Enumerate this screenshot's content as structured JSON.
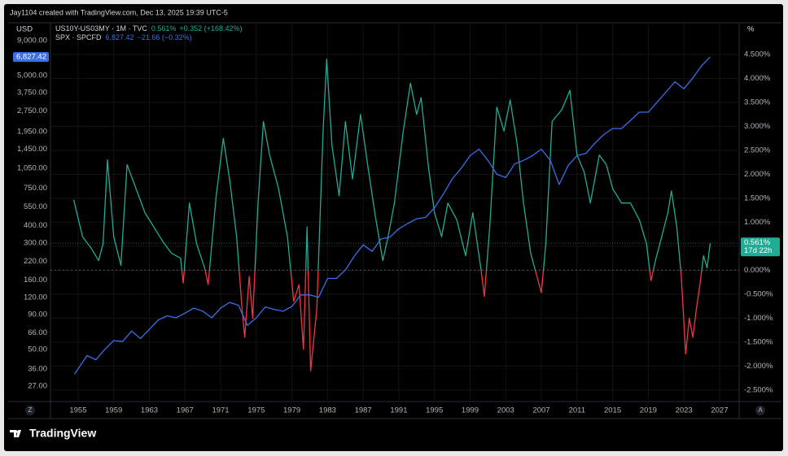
{
  "header": "Jay1104 created with TradingView.com, Dec 13, 2025 19:39 UTC-5",
  "footer": "TradingView",
  "buttons": [
    "Z",
    "A"
  ],
  "chart_data": {
    "type": "line",
    "left_axis_label": "USD",
    "right_axis_label": "%",
    "countdown": "17d 22h",
    "xlim": [
      1951.9,
      2029.2
    ],
    "xticks": [
      1955,
      1959,
      1963,
      1967,
      1971,
      1975,
      1979,
      1983,
      1987,
      1991,
      1995,
      1999,
      2003,
      2007,
      2011,
      2015,
      2019,
      2023,
      2027
    ],
    "ylim": [
      20.8,
      12140
    ],
    "log_y": true,
    "yticks": [
      {
        "value": 9000,
        "label": "9,000.00"
      },
      {
        "value": 5000,
        "label": "5,000.00"
      },
      {
        "value": 3750,
        "label": "3,750.00"
      },
      {
        "value": 2750,
        "label": "2,750.00"
      },
      {
        "value": 1950,
        "label": "1,950.00"
      },
      {
        "value": 1450,
        "label": "1,450.00"
      },
      {
        "value": 1050,
        "label": "1,050.00"
      },
      {
        "value": 750,
        "label": "750.00"
      },
      {
        "value": 550,
        "label": "550.00"
      },
      {
        "value": 400,
        "label": "400.00"
      },
      {
        "value": 300,
        "label": "300.00"
      },
      {
        "value": 220,
        "label": "220.00"
      },
      {
        "value": 160,
        "label": "160.00"
      },
      {
        "value": 120,
        "label": "120.00"
      },
      {
        "value": 90,
        "label": "90.00"
      },
      {
        "value": 66,
        "label": "66.00"
      },
      {
        "value": 50,
        "label": "50.00"
      },
      {
        "value": 36,
        "label": "36.00"
      },
      {
        "value": 27,
        "label": "27.00"
      }
    ],
    "y2lim": [
      -2.74,
      5.16
    ],
    "y2ticks": [
      {
        "value": 4.5,
        "label": "4.500%"
      },
      {
        "value": 4,
        "label": "4.000%"
      },
      {
        "value": 3.5,
        "label": "3.500%"
      },
      {
        "value": 3,
        "label": "3.000%"
      },
      {
        "value": 2.5,
        "label": "2.500%"
      },
      {
        "value": 2,
        "label": "2.000%"
      },
      {
        "value": 1.5,
        "label": "1.500%"
      },
      {
        "value": 1,
        "label": "1.000%"
      },
      {
        "value": 0.5,
        "label": "0.500%"
      },
      {
        "value": 0,
        "label": "0.000%"
      },
      {
        "value": -0.5,
        "label": "-0.500%"
      },
      {
        "value": -1,
        "label": "-1.000%"
      },
      {
        "value": -1.5,
        "label": "-1.500%"
      },
      {
        "value": -2,
        "label": "-2.000%"
      },
      {
        "value": -2.5,
        "label": "-2.500%"
      }
    ],
    "grid": true,
    "series": [
      {
        "name": "US10Y-US03MY · 1M · TVC",
        "axis": "y2",
        "color": "#22ab94",
        "negative_color": "#f23645",
        "last_label": "0.561%",
        "change_label": "+0.352 (+168.42%)",
        "x": [
          1954.5,
          1955.5,
          1956.5,
          1957.3,
          1957.8,
          1958.3,
          1959,
          1959.8,
          1960.5,
          1961.5,
          1962.5,
          1963.5,
          1964.5,
          1965.5,
          1966.5,
          1966.8,
          1967.5,
          1968.3,
          1969.2,
          1969.6,
          1970.5,
          1971.3,
          1972,
          1972.8,
          1973.4,
          1973.7,
          1974.2,
          1974.6,
          1975.2,
          1975.8,
          1976.5,
          1977.5,
          1978.5,
          1979.2,
          1979.8,
          1980.3,
          1980.7,
          1981.1,
          1981.8,
          1982.5,
          1982.9,
          1983.5,
          1984.3,
          1985,
          1985.8,
          1986.7,
          1987.5,
          1988.3,
          1989.2,
          1989.8,
          1990.5,
          1991.5,
          1992.3,
          1993,
          1993.5,
          1994.3,
          1995,
          1995.8,
          1996.5,
          1997.5,
          1998.5,
          1999.3,
          2000.2,
          2000.6,
          2001.2,
          2002,
          2002.8,
          2003.5,
          2004.3,
          2005,
          2005.8,
          2006.5,
          2007,
          2007.5,
          2008.2,
          2009.3,
          2010.2,
          2011,
          2011.8,
          2012.5,
          2013.5,
          2014.3,
          2015,
          2016,
          2017,
          2018,
          2018.8,
          2019.3,
          2019.8,
          2020.3,
          2021.2,
          2021.6,
          2022.2,
          2022.7,
          2023.2,
          2023.6,
          2024,
          2024.4,
          2024.8,
          2025.2,
          2025.6,
          2025.95
        ],
        "values": [
          1.47,
          0.7,
          0.45,
          0.2,
          0.55,
          2.3,
          0.7,
          0.1,
          2.2,
          1.7,
          1.2,
          0.9,
          0.6,
          0.35,
          0.25,
          -0.27,
          1.4,
          0.55,
          0.05,
          -0.3,
          1.55,
          2.75,
          1.9,
          0.7,
          -0.8,
          -1.4,
          -0.13,
          -1.0,
          1.4,
          3.1,
          2.4,
          1.7,
          0.7,
          -0.65,
          -0.3,
          -1.65,
          0.9,
          -2.1,
          -0.8,
          2.9,
          4.4,
          2.6,
          1.55,
          3.1,
          1.9,
          3.25,
          2.2,
          1.2,
          0.2,
          0.7,
          1.4,
          2.9,
          3.9,
          3.25,
          3.6,
          2.2,
          1.2,
          0.7,
          1.4,
          1.05,
          0.3,
          1.2,
          0.05,
          -0.55,
          0.9,
          3.4,
          2.9,
          3.55,
          2.6,
          1.4,
          0.35,
          -0.13,
          -0.47,
          0.55,
          3.1,
          3.35,
          3.75,
          2.4,
          2.05,
          1.4,
          2.4,
          2.2,
          1.7,
          1.4,
          1.4,
          1.05,
          0.55,
          -0.22,
          0.2,
          0.55,
          1.2,
          1.65,
          0.9,
          -0.13,
          -1.75,
          -1.0,
          -1.4,
          -0.8,
          -0.3,
          0.3,
          0.05,
          0.561
        ]
      },
      {
        "name": "SPX · SPCFD",
        "axis": "y",
        "color": "#3c6ee8",
        "last_label": "6,827.42",
        "change_label": "−21.66 (−0.32%)",
        "x": [
          1954.6,
          1955,
          1956,
          1957,
          1958,
          1959,
          1960,
          1961,
          1962,
          1963,
          1964,
          1965,
          1966,
          1967,
          1968,
          1969,
          1970,
          1971,
          1972,
          1973,
          1974,
          1975,
          1976,
          1977,
          1978,
          1979,
          1980,
          1981,
          1982,
          1983,
          1984,
          1985,
          1986,
          1987,
          1988,
          1989,
          1990,
          1991,
          1992,
          1993,
          1994,
          1995,
          1996,
          1997,
          1998,
          1999,
          2000,
          2001,
          2002,
          2003,
          2004,
          2005,
          2006,
          2007,
          2008,
          2009,
          2010,
          2011,
          2012,
          2013,
          2014,
          2015,
          2016,
          2017,
          2018,
          2019,
          2020,
          2021,
          2022,
          2023,
          2024,
          2025,
          2025.95
        ],
        "values": [
          33,
          36,
          45,
          42,
          50,
          58,
          57,
          68,
          60,
          70,
          82,
          88,
          85,
          92,
          100,
          95,
          85,
          100,
          110,
          105,
          75,
          85,
          102,
          98,
          95,
          103,
          125,
          125,
          120,
          165,
          165,
          190,
          240,
          290,
          260,
          320,
          330,
          380,
          415,
          450,
          460,
          540,
          680,
          880,
          1050,
          1300,
          1450,
          1200,
          950,
          900,
          1130,
          1200,
          1300,
          1450,
          1200,
          800,
          1100,
          1300,
          1350,
          1600,
          1850,
          2050,
          2050,
          2350,
          2700,
          2700,
          3200,
          3800,
          4500,
          4000,
          4800,
          5900,
          6827.42
        ]
      }
    ]
  }
}
